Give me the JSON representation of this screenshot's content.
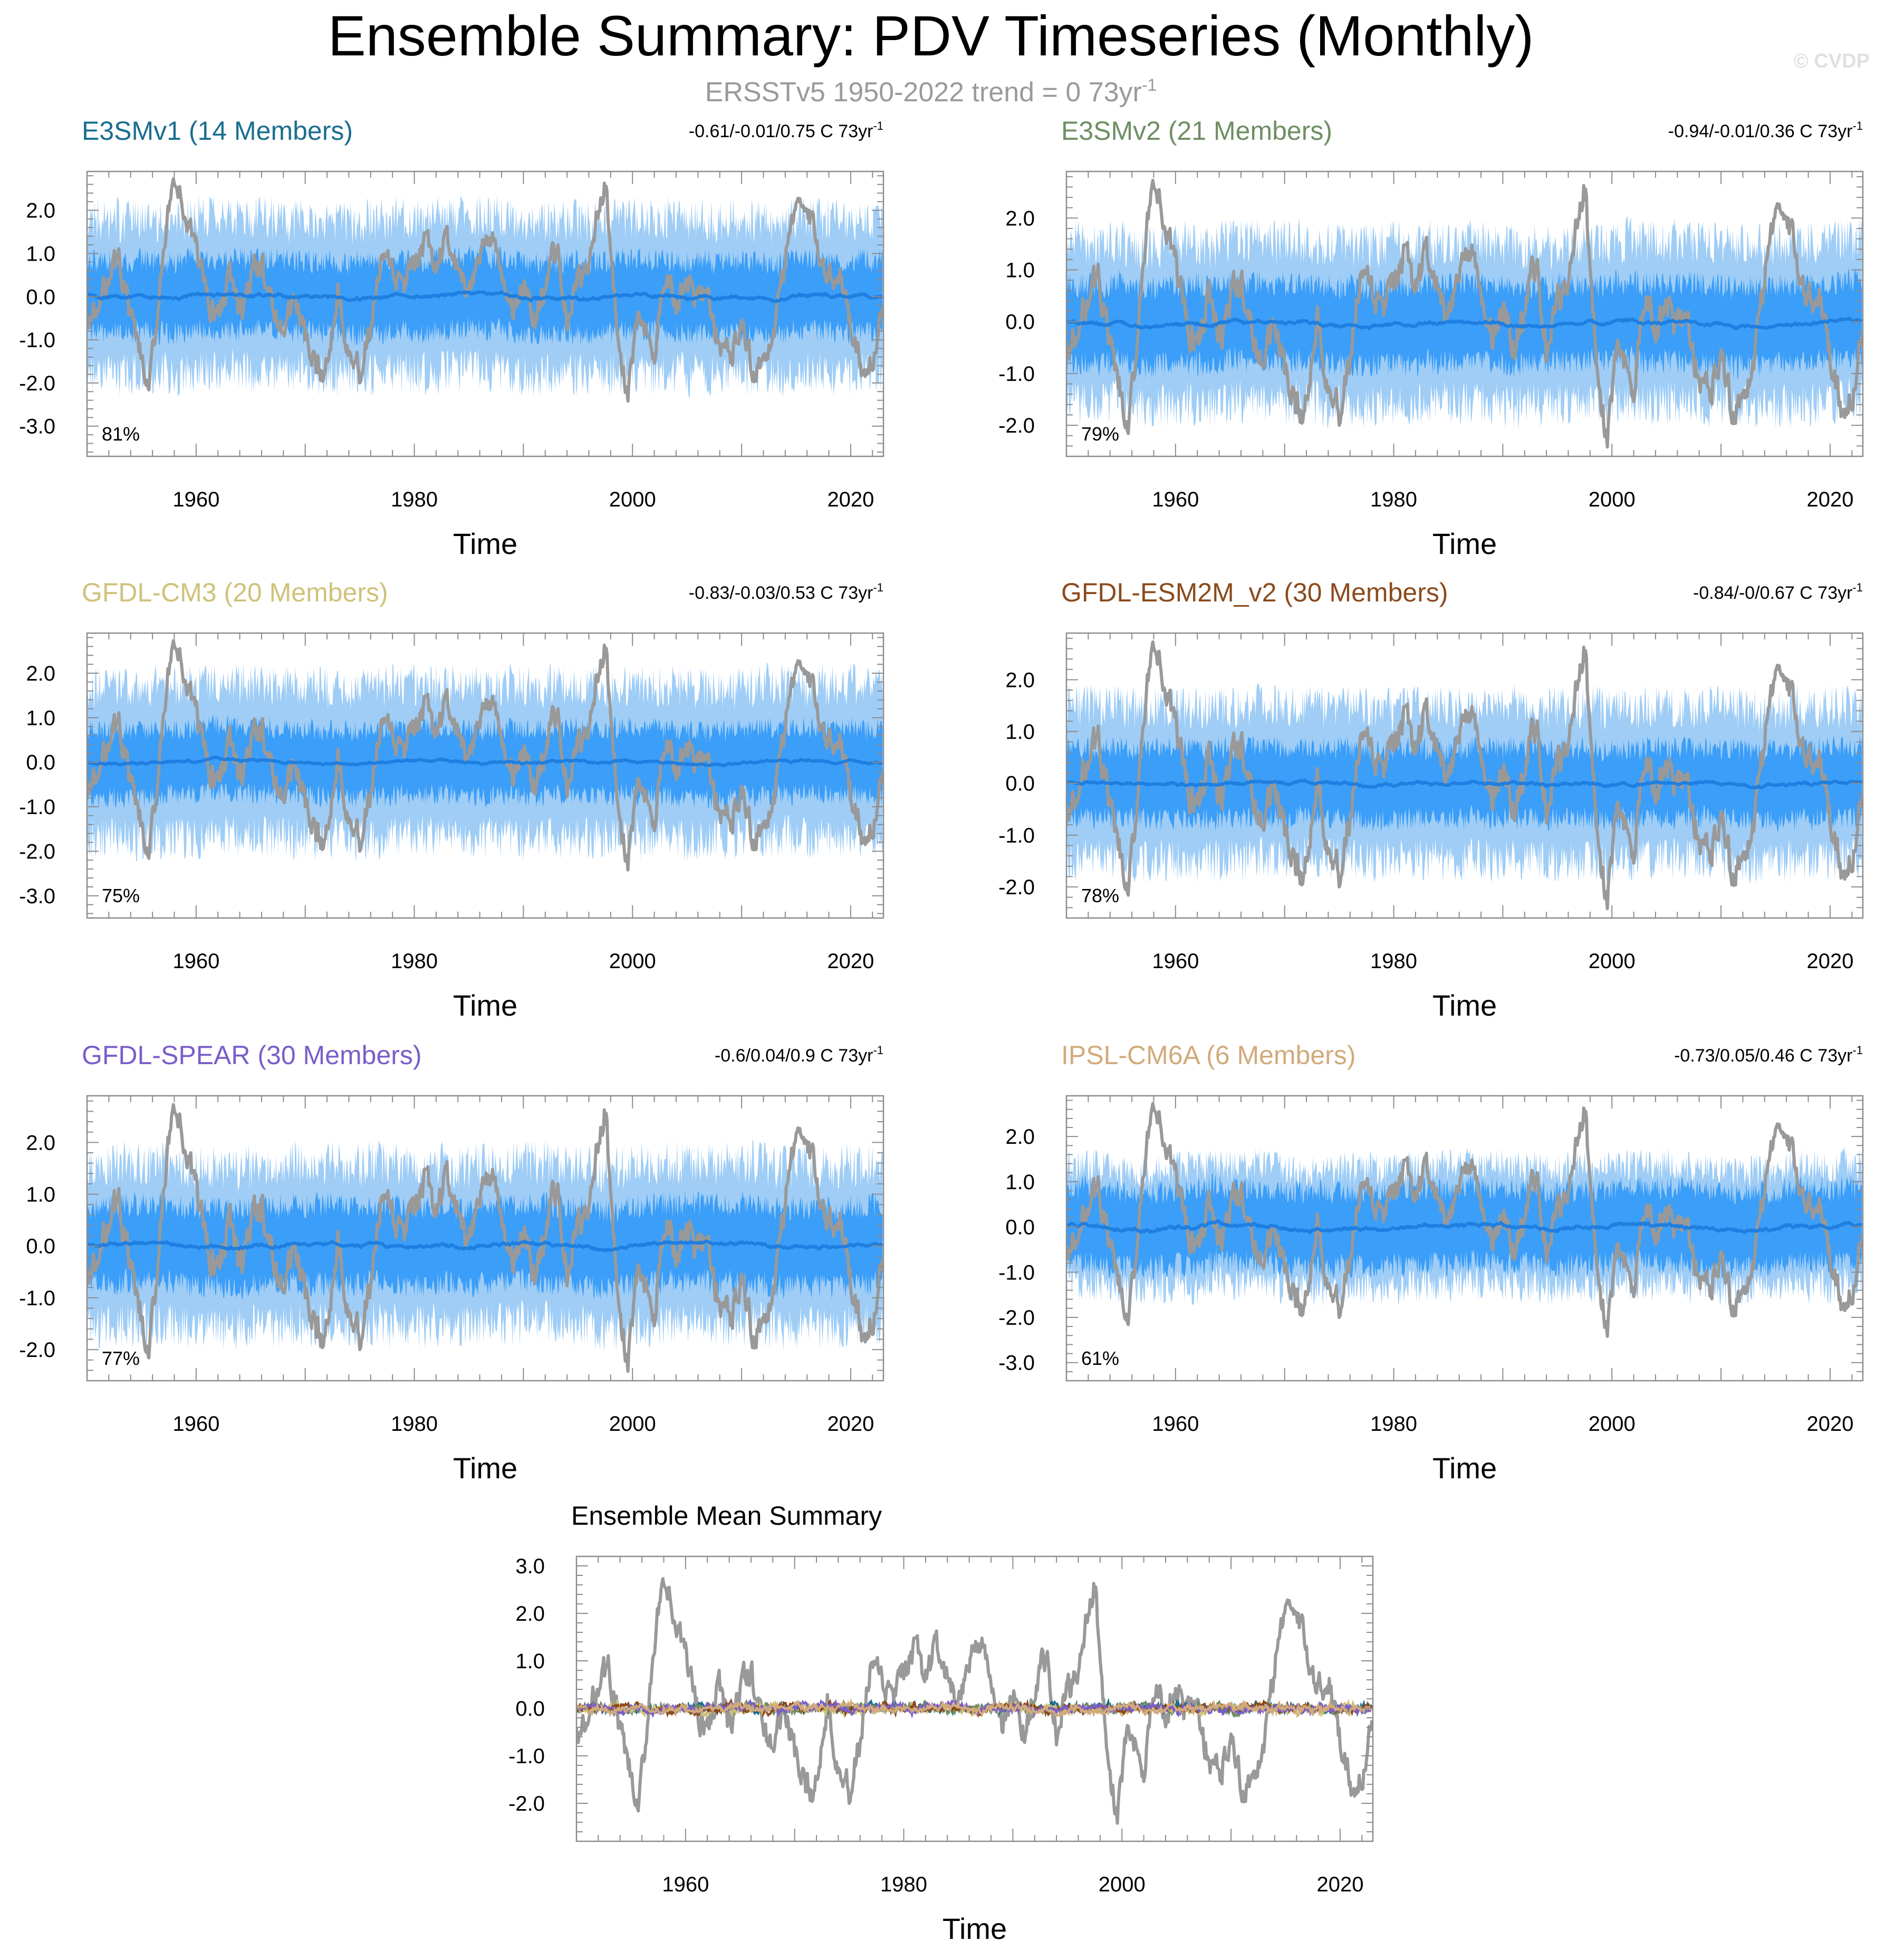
{
  "figure": {
    "title": "Ensemble Summary: PDV Timeseries (Monthly)",
    "subtitle": "ERSSTv5 1950-2022 trend = 0 73yr",
    "subtitle_sup": "-1",
    "watermark": "© CVDP"
  },
  "colors": {
    "observed": "#999999",
    "spread_outer": "#9fcdf6",
    "spread_inner": "#3b9ef8",
    "ensemble_mean": "#1f7fe0"
  },
  "chart_data": [
    {
      "type": "area",
      "panel": "E3SMv1",
      "title": "E3SMv1 (14 Members)",
      "title_color": "#1a6e8e",
      "stat_text": "-0.61/-0.01/0.75 C 73yr",
      "stat_sup": "-1",
      "pct": "81%",
      "xlabel": "Time",
      "xlim": [
        1950,
        2023
      ],
      "xticks": [
        1960,
        1980,
        2000,
        2020
      ],
      "ylim": [
        -3.7,
        2.9
      ],
      "yticks": [
        2.0,
        1.0,
        0.0,
        -1.0,
        -2.0,
        -3.0
      ],
      "ytick_labels": [
        "2.0",
        "1.0",
        "0.0",
        "-1.0",
        "-2.0",
        "-3.0"
      ],
      "spread_outer_amp": 2.3,
      "spread_inner_amp": 1.1,
      "mean_amp": 0.12,
      "mean_offset": 0.0,
      "seed": 11,
      "series": [
        {
          "role": "obs",
          "values": []
        },
        {
          "role": "ensemble_mean",
          "values": []
        }
      ]
    },
    {
      "type": "area",
      "panel": "E3SMv2",
      "title": "E3SMv2 (21 Members)",
      "title_color": "#6e8e63",
      "stat_text": "-0.94/-0.01/0.36 C 73yr",
      "stat_sup": "-1",
      "pct": "79%",
      "xlabel": "Time",
      "xlim": [
        1950,
        2023
      ],
      "xticks": [
        1960,
        1980,
        2000,
        2020
      ],
      "ylim": [
        -2.6,
        2.9
      ],
      "yticks": [
        2.0,
        1.0,
        0.0,
        -1.0,
        -2.0
      ],
      "ytick_labels": [
        "2.0",
        "1.0",
        "0.0",
        "-1.0",
        "-2.0"
      ],
      "spread_outer_amp": 2.0,
      "spread_inner_amp": 1.0,
      "mean_amp": 0.1,
      "mean_offset": -0.03,
      "seed": 23,
      "series": [
        {
          "role": "obs",
          "values": []
        },
        {
          "role": "ensemble_mean",
          "values": []
        }
      ]
    },
    {
      "type": "area",
      "panel": "GFDL-CM3",
      "title": "GFDL-CM3 (20 Members)",
      "title_color": "#cfc27a",
      "stat_text": "-0.83/-0.03/0.53 C 73yr",
      "stat_sup": "-1",
      "pct": "75%",
      "xlabel": "Time",
      "xlim": [
        1950,
        2023
      ],
      "xticks": [
        1960,
        1980,
        2000,
        2020
      ],
      "ylim": [
        -3.5,
        2.9
      ],
      "yticks": [
        2.0,
        1.0,
        0.0,
        -1.0,
        -2.0,
        -3.0
      ],
      "ytick_labels": [
        "2.0",
        "1.0",
        "0.0",
        "-1.0",
        "-2.0",
        "-3.0"
      ],
      "spread_outer_amp": 2.2,
      "spread_inner_amp": 1.0,
      "mean_amp": 0.08,
      "mean_offset": 0.0,
      "seed": 37,
      "series": [
        {
          "role": "obs",
          "values": []
        },
        {
          "role": "ensemble_mean",
          "values": []
        }
      ]
    },
    {
      "type": "area",
      "panel": "GFDL-ESM2M_v2",
      "title": "GFDL-ESM2M_v2 (30 Members)",
      "title_color": "#8b4a1c",
      "stat_text": "-0.84/-0/0.67 C 73yr",
      "stat_sup": "-1",
      "pct": "78%",
      "xlabel": "Time",
      "xlim": [
        1950,
        2023
      ],
      "xticks": [
        1960,
        1980,
        2000,
        2020
      ],
      "ylim": [
        -2.6,
        2.9
      ],
      "yticks": [
        2.0,
        1.0,
        0.0,
        -1.0,
        -2.0
      ],
      "ytick_labels": [
        "2.0",
        "1.0",
        "0.0",
        "-1.0",
        "-2.0"
      ],
      "spread_outer_amp": 1.9,
      "spread_inner_amp": 0.9,
      "mean_amp": 0.08,
      "mean_offset": 0.0,
      "seed": 41,
      "series": [
        {
          "role": "obs",
          "values": []
        },
        {
          "role": "ensemble_mean",
          "values": []
        }
      ]
    },
    {
      "type": "area",
      "panel": "GFDL-SPEAR",
      "title": "GFDL-SPEAR (30 Members)",
      "title_color": "#7a5ec9",
      "stat_text": "-0.6/0.04/0.9 C 73yr",
      "stat_sup": "-1",
      "pct": "77%",
      "xlabel": "Time",
      "xlim": [
        1950,
        2023
      ],
      "xticks": [
        1960,
        1980,
        2000,
        2020
      ],
      "ylim": [
        -2.6,
        2.9
      ],
      "yticks": [
        2.0,
        1.0,
        0.0,
        -1.0,
        -2.0
      ],
      "ytick_labels": [
        "2.0",
        "1.0",
        "0.0",
        "-1.0",
        "-2.0"
      ],
      "spread_outer_amp": 2.0,
      "spread_inner_amp": 1.0,
      "mean_amp": 0.1,
      "mean_offset": 0.02,
      "seed": 53,
      "series": [
        {
          "role": "obs",
          "values": []
        },
        {
          "role": "ensemble_mean",
          "values": []
        }
      ]
    },
    {
      "type": "area",
      "panel": "IPSL-CM6A",
      "title": "IPSL-CM6A (6 Members)",
      "title_color": "#d2aa7c",
      "stat_text": "-0.73/0.05/0.46 C 73yr",
      "stat_sup": "-1",
      "pct": "61%",
      "xlabel": "Time",
      "xlim": [
        1950,
        2023
      ],
      "xticks": [
        1960,
        1980,
        2000,
        2020
      ],
      "ylim": [
        -3.4,
        2.9
      ],
      "yticks": [
        2.0,
        1.0,
        0.0,
        -1.0,
        -2.0,
        -3.0
      ],
      "ytick_labels": [
        "2.0",
        "1.0",
        "0.0",
        "-1.0",
        "-2.0",
        "-3.0"
      ],
      "spread_outer_amp": 1.7,
      "spread_inner_amp": 1.1,
      "mean_amp": 0.12,
      "mean_offset": 0.0,
      "seed": 67,
      "series": [
        {
          "role": "obs",
          "values": []
        },
        {
          "role": "ensemble_mean",
          "values": []
        }
      ]
    },
    {
      "type": "line",
      "panel": "Ensemble Mean Summary",
      "title": "Ensemble Mean Summary",
      "title_color": "#000000",
      "xlabel": "Time",
      "xlim": [
        1950,
        2023
      ],
      "xticks": [
        1960,
        1980,
        2000,
        2020
      ],
      "ylim": [
        -2.8,
        3.2
      ],
      "yticks": [
        3.0,
        2.0,
        1.0,
        0.0,
        -1.0,
        -2.0
      ],
      "ytick_labels": [
        "3.0",
        "2.0",
        "1.0",
        "0.0",
        "-1.0",
        "-2.0"
      ],
      "model_colors": [
        "#1a6e8e",
        "#6e8e63",
        "#cfc27a",
        "#8b4a1c",
        "#7a5ec9",
        "#d2aa7c"
      ],
      "mean_amp": 0.1,
      "seed": 79,
      "series": [
        {
          "role": "obs",
          "values": []
        }
      ]
    }
  ]
}
